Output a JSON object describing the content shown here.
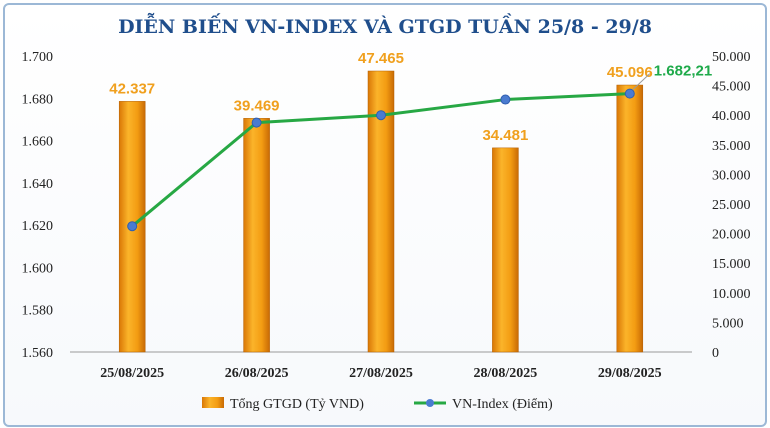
{
  "chart_data": {
    "type": "bar+line",
    "title": "DIỄN BIẾN VN-INDEX VÀ GTGD TUẦN 25/8 - 29/8",
    "categories": [
      "25/08/2025",
      "26/08/2025",
      "27/08/2025",
      "28/08/2025",
      "29/08/2025"
    ],
    "series": [
      {
        "name": "Tổng GTGD (Tỷ VND)",
        "type": "bar",
        "axis": "right",
        "color": "#f39c12",
        "values": [
          42337,
          39469,
          47465,
          34481,
          45096
        ],
        "labels": [
          "42.337",
          "39.469",
          "47.465",
          "34.481",
          "45.096"
        ]
      },
      {
        "name": "VN-Index (Điểm)",
        "type": "line",
        "axis": "left",
        "color": "#27a844",
        "values": [
          1619.5,
          1668.5,
          1672.0,
          1679.4,
          1682.21
        ],
        "labels": [
          "",
          "",
          "",
          "",
          "1.682,21"
        ]
      }
    ],
    "left_axis": {
      "ylim": [
        1560,
        1700
      ],
      "ticks": [
        1700,
        1680,
        1660,
        1640,
        1620,
        1600,
        1580,
        1560
      ],
      "tick_labels": [
        "1.700",
        "1.680",
        "1.660",
        "1.640",
        "1.620",
        "1.600",
        "1.580",
        "1.560"
      ]
    },
    "right_axis": {
      "ylim": [
        0,
        50000
      ],
      "ticks": [
        50000,
        45000,
        40000,
        35000,
        30000,
        25000,
        20000,
        15000,
        10000,
        5000,
        0
      ],
      "tick_labels": [
        "50.000",
        "45.000",
        "40.000",
        "35.000",
        "30.000",
        "25.000",
        "20.000",
        "15.000",
        "10.000",
        "5.000",
        "0"
      ]
    },
    "legend": "bottom",
    "grid": false
  }
}
